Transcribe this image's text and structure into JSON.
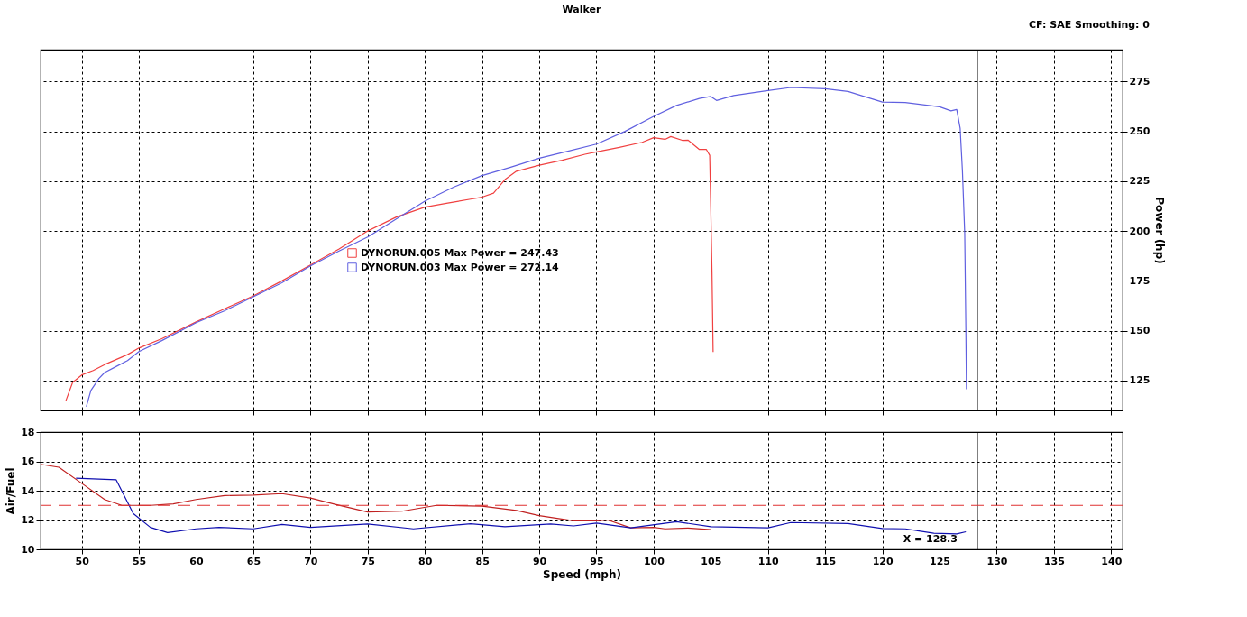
{
  "chart_data": [
    {
      "type": "line",
      "title": "Walker",
      "annotations": [
        "CF: SAE  Smoothing: 0"
      ],
      "ylabel": "Power (hp)",
      "xlim": [
        46.4,
        141
      ],
      "xticks": [
        50,
        55,
        60,
        65,
        70,
        75,
        80,
        85,
        90,
        95,
        100,
        105,
        110,
        115,
        120,
        125,
        130,
        135,
        140
      ],
      "ylim": [
        110,
        291
      ],
      "yticks": [
        125,
        150,
        175,
        200,
        225,
        250,
        275
      ],
      "grid": true,
      "legend": "left",
      "tick_labels": "y",
      "ref_lines": [
        {
          "axis": "x",
          "value": 128.3,
          "color": "#000000"
        }
      ],
      "series": [
        {
          "name": "DYNORUN.005 Max Power = 247.43",
          "color": "#f04040",
          "x": [
            48.6,
            49.2,
            50,
            51,
            52,
            53,
            54,
            55,
            57,
            60,
            62.5,
            65,
            67.5,
            70,
            72.5,
            75,
            77.5,
            80,
            82,
            84,
            85,
            86,
            87,
            88,
            90,
            92,
            94,
            95,
            97,
            99,
            100,
            101,
            101.5,
            102.5,
            103,
            104,
            104.6,
            104.9,
            105.0,
            105.1,
            105.2
          ],
          "values": [
            114.7,
            124,
            127.8,
            130,
            133,
            135.5,
            138,
            141.3,
            146,
            154.4,
            161,
            167.5,
            175,
            183,
            191,
            200,
            207,
            212,
            214,
            216,
            217,
            219,
            225.8,
            230,
            233,
            235.5,
            238.5,
            239.7,
            242,
            244.5,
            246.8,
            246,
            247.4,
            245.5,
            245.6,
            240.9,
            241,
            238,
            210,
            180,
            139.3
          ]
        },
        {
          "name": "DYNORUN.003 Max Power = 272.14",
          "color": "#6060e0",
          "x": [
            50.4,
            50.8,
            51.5,
            52,
            53,
            54,
            55,
            57,
            60,
            62.5,
            65,
            67.5,
            70,
            72.5,
            75,
            77.5,
            80,
            82.5,
            85,
            87.5,
            90,
            92.5,
            95,
            97.5,
            100,
            102,
            104,
            105,
            105.5,
            107,
            110,
            112,
            115,
            117,
            120,
            122,
            125,
            126,
            126.5,
            126.8,
            127.0,
            127.2,
            127.3,
            127.35
          ],
          "values": [
            111.9,
            120,
            126,
            129,
            132,
            135,
            139.5,
            145,
            154,
            160,
            167,
            174,
            182.5,
            190,
            197,
            206,
            215,
            222,
            227.8,
            232,
            236.5,
            240,
            243.6,
            250,
            257.5,
            263,
            266.5,
            267.5,
            265.5,
            268,
            270.5,
            272,
            271.4,
            270,
            264.7,
            264.5,
            262.3,
            260.3,
            261,
            251.6,
            230,
            198.8,
            150,
            120.6
          ]
        }
      ]
    },
    {
      "type": "line",
      "xlabel": "Speed (mph)",
      "ylabel": "Air/Fuel",
      "xlim": [
        46.4,
        141
      ],
      "xticks": [
        50,
        55,
        60,
        65,
        70,
        75,
        80,
        85,
        90,
        95,
        100,
        105,
        110,
        115,
        120,
        125,
        130,
        135,
        140
      ],
      "ylim": [
        10,
        18
      ],
      "yticks": [
        10,
        12,
        14,
        16,
        18
      ],
      "grid": true,
      "ref_lines": [
        {
          "axis": "x",
          "value": 128.3,
          "color": "#000000",
          "label": "X = 128.3"
        },
        {
          "axis": "y",
          "value": 13,
          "color": "#e03030",
          "line_style": "dashed"
        }
      ],
      "series": [
        {
          "color": "#c02020",
          "x": [
            46.4,
            48,
            50,
            52,
            53.5,
            56,
            58,
            60,
            62.5,
            65,
            67.5,
            70,
            72,
            75,
            78,
            81,
            85,
            88,
            90,
            93,
            95,
            96,
            98,
            100,
            101,
            103,
            105
          ],
          "values": [
            15.8,
            15.6,
            14.5,
            13.4,
            13.0,
            13.0,
            13.1,
            13.4,
            13.67,
            13.7,
            13.8,
            13.5,
            13.1,
            12.55,
            12.6,
            13.0,
            12.95,
            12.65,
            12.3,
            11.95,
            11.95,
            12.0,
            11.47,
            11.5,
            11.4,
            11.45,
            11.35
          ]
        },
        {
          "color": "#1010b0",
          "x": [
            49.5,
            53,
            54.5,
            56,
            57.5,
            60,
            62,
            65,
            67.5,
            70,
            75,
            79,
            84,
            87,
            91,
            93,
            95,
            98,
            102,
            105,
            110,
            112,
            117,
            120,
            122,
            124.5,
            126.5,
            127.3
          ],
          "values": [
            14.85,
            14.75,
            12.45,
            11.5,
            11.15,
            11.4,
            11.5,
            11.4,
            11.7,
            11.5,
            11.73,
            11.4,
            11.75,
            11.55,
            11.73,
            11.6,
            11.79,
            11.47,
            11.89,
            11.55,
            11.47,
            11.83,
            11.76,
            11.42,
            11.4,
            11.1,
            11.05,
            11.2
          ]
        }
      ]
    }
  ]
}
